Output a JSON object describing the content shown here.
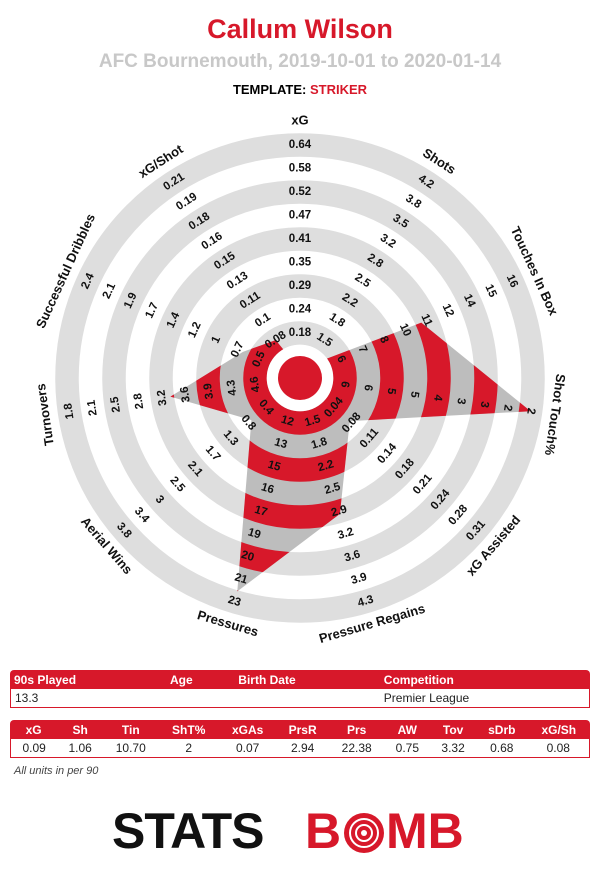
{
  "title": "Callum Wilson",
  "subtitle": "AFC Bournemouth, 2019-10-01 to 2020-01-14",
  "template": {
    "label": "TEMPLATE:",
    "value": "STRIKER"
  },
  "chart_data": {
    "type": "radar",
    "axes": [
      "xG",
      "Shots",
      "Touches In Box",
      "Shot Touch%",
      "xG Assisted",
      "Pressure Regains",
      "Pressures",
      "Aerial Wins",
      "Turnovers",
      "Successful Dribbles",
      "xG/Shot"
    ],
    "short_names": [
      "xG",
      "Sh",
      "Tin",
      "ShT%",
      "xGAs",
      "PrsR",
      "Prs",
      "AW",
      "Tov",
      "sDrb",
      "xG/Sh"
    ],
    "values": [
      0.09,
      1.06,
      10.7,
      2,
      0.07,
      2.94,
      22.38,
      0.75,
      3.32,
      0.68,
      0.08
    ],
    "value_labels": [
      "0.09",
      "1.06",
      "10.70",
      "2",
      "0.07",
      "2.94",
      "22.38",
      "0.75",
      "3.32",
      "0.68",
      "0.08"
    ],
    "ticks": [
      [
        0.18,
        0.24,
        0.29,
        0.35,
        0.41,
        0.47,
        0.52,
        0.58,
        0.64
      ],
      [
        1.5,
        1.8,
        2.2,
        2.5,
        2.8,
        3.2,
        3.5,
        3.8,
        4.2
      ],
      [
        6,
        7,
        8,
        10,
        11,
        12,
        14,
        15,
        16
      ],
      [
        6,
        6,
        5,
        5,
        4,
        3,
        3,
        2,
        2
      ],
      [
        0.04,
        0.08,
        0.11,
        0.14,
        0.18,
        0.21,
        0.24,
        0.28,
        0.31
      ],
      [
        1.5,
        1.8,
        2.2,
        2.5,
        2.9,
        3.2,
        3.6,
        3.9,
        4.3
      ],
      [
        12,
        13,
        15,
        16,
        17,
        19,
        20,
        21,
        23
      ],
      [
        0.4,
        0.8,
        1.3,
        1.7,
        2.1,
        2.5,
        3.0,
        3.4,
        3.8
      ],
      [
        4.6,
        4.3,
        3.9,
        3.6,
        3.2,
        2.8,
        2.5,
        2.1,
        1.8
      ],
      [
        0.5,
        0.7,
        1.0,
        1.2,
        1.4,
        1.7,
        1.9,
        2.1,
        2.4
      ],
      [
        0.08,
        0.1,
        0.11,
        0.13,
        0.15,
        0.16,
        0.18,
        0.19,
        0.21
      ]
    ],
    "color": "#d7182a"
  },
  "info_table": [
    {
      "header": "90s Played",
      "value": 13.3
    },
    {
      "header": "Age"
    },
    {
      "header": "Birth Date"
    },
    {
      "header": "Competition",
      "value": "Premier League"
    }
  ],
  "footnote": "All units in per 90",
  "logo": {
    "dark": "STATS",
    "red_a": "B",
    "red_b": "MB"
  }
}
